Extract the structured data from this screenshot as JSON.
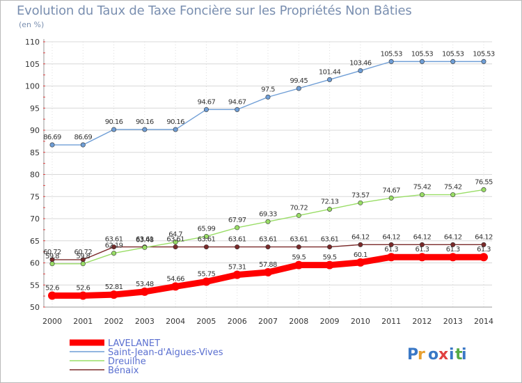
{
  "title": "Evolution du Taux de Taxe Foncière sur les Propriétés Non Bâties",
  "subtitle": "(en %)",
  "logo_text": "Proxiti",
  "chart_data": {
    "type": "line",
    "title": "Evolution du Taux de Taxe Foncière sur les Propriétés Non Bâties",
    "ylabel": "(en %)",
    "xlabel": "",
    "x": [
      "2000",
      "2001",
      "2002",
      "2003",
      "2004",
      "2005",
      "2006",
      "2007",
      "2008",
      "2009",
      "2010",
      "2011",
      "2012",
      "2013",
      "2014"
    ],
    "ylim": [
      50,
      110
    ],
    "yticks": [
      "50",
      "55",
      "60",
      "65",
      "70",
      "75",
      "80",
      "85",
      "90",
      "95",
      "100",
      "105",
      "110"
    ],
    "grid": true,
    "legend_position": "bottom-left",
    "series": [
      {
        "name": "LAVELANET",
        "color": "#ff0000",
        "values": [
          52.6,
          52.6,
          52.81,
          53.48,
          54.66,
          55.75,
          57.31,
          57.88,
          59.5,
          59.5,
          60.1,
          61.3,
          61.3,
          61.3,
          61.3
        ],
        "labels": [
          "52.6",
          "52.6",
          "52.81",
          "53.48",
          "54.66",
          "55.75",
          "57.31",
          "57.88",
          "59.5",
          "59.5",
          "60.1",
          "61.3",
          "61.3",
          "61.3",
          "61.3"
        ]
      },
      {
        "name": "Saint-Jean-d'Aigues-Vives",
        "color": "#6f9ed6",
        "values": [
          86.69,
          86.69,
          90.16,
          90.16,
          90.16,
          94.67,
          94.67,
          97.5,
          99.45,
          101.44,
          103.46,
          105.53,
          105.53,
          105.53,
          105.53
        ],
        "labels": [
          "86.69",
          "86.69",
          "90.16",
          "90.16",
          "90.16",
          "94.67",
          "94.67",
          "97.5",
          "99.45",
          "101.44",
          "103.46",
          "105.53",
          "105.53",
          "105.53",
          "105.53"
        ]
      },
      {
        "name": "Dreuilhe",
        "color": "#99dd66",
        "values": [
          59.8,
          59.8,
          62.19,
          63.48,
          64.7,
          65.99,
          67.97,
          69.33,
          70.72,
          72.13,
          73.57,
          74.67,
          75.42,
          75.42,
          76.55
        ],
        "labels": [
          "59.8",
          "59.8",
          "62.19",
          "63.48",
          "64.7",
          "65.99",
          "67.97",
          "69.33",
          "70.72",
          "72.13",
          "73.57",
          "74.67",
          "75.42",
          "75.42",
          "76.55"
        ]
      },
      {
        "name": "Bénaix",
        "color": "#7a2a2a",
        "values": [
          60.72,
          60.72,
          63.61,
          63.61,
          63.61,
          63.61,
          63.61,
          63.61,
          63.61,
          63.61,
          64.12,
          64.12,
          64.12,
          64.12,
          64.12
        ],
        "labels": [
          "60.72",
          "60.72",
          "63.61",
          "63.61",
          "63.61",
          "63.61",
          "63.61",
          "63.61",
          "63.61",
          "63.61",
          "64.12",
          "64.12",
          "64.12",
          "64.12",
          "64.12"
        ]
      }
    ]
  }
}
